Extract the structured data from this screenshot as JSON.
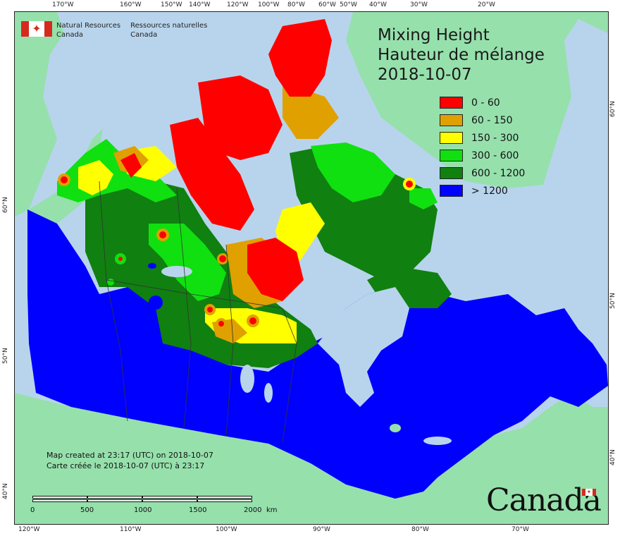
{
  "title": {
    "line1": "Mixing Height",
    "line2": "Hauteur de mélange",
    "date": "2018-10-07"
  },
  "logo": {
    "org_en_line1": "Natural Resources",
    "org_en_line2": "Canada",
    "org_fr_line1": "Ressources naturelles",
    "org_fr_line2": "Canada",
    "flag_symbol": "maple-leaf-icon"
  },
  "legend": [
    {
      "label": "0 - 60",
      "color": "#ff0000"
    },
    {
      "label": "60 - 150",
      "color": "#e0a000"
    },
    {
      "label": "150 - 300",
      "color": "#ffff00"
    },
    {
      "label": "300 - 600",
      "color": "#10e010"
    },
    {
      "label": "600 - 1200",
      "color": "#108010"
    },
    {
      "label": "> 1200",
      "color": "#0000ff"
    }
  ],
  "credits": {
    "line_en": "Map created at 23:17 (UTC) on 2018-10-07",
    "line_fr": "Carte créée le 2018-10-07 (UTC) à 23:17"
  },
  "scale": {
    "labels": [
      "0",
      "500",
      "1000",
      "1500",
      "2000"
    ],
    "unit": "km"
  },
  "wordmark": "Canada",
  "graticule": {
    "top": [
      "170°W",
      "160°W",
      "150°W",
      "140°W",
      "120°W",
      "100°W",
      "80°W",
      "60°W",
      "50°W",
      "40°W",
      "30°W",
      "20°W"
    ],
    "bottom": [
      "120°W",
      "110°W",
      "100°W",
      "90°W",
      "80°W",
      "70°W"
    ],
    "left": [
      "60°N",
      "50°N",
      "40°N"
    ],
    "right": [
      "60°N",
      "50°N",
      "40°N"
    ]
  },
  "colors": {
    "ocean": "#b8d4ec",
    "foreign_land": "#96e0ac",
    "boundary": "#333333"
  }
}
